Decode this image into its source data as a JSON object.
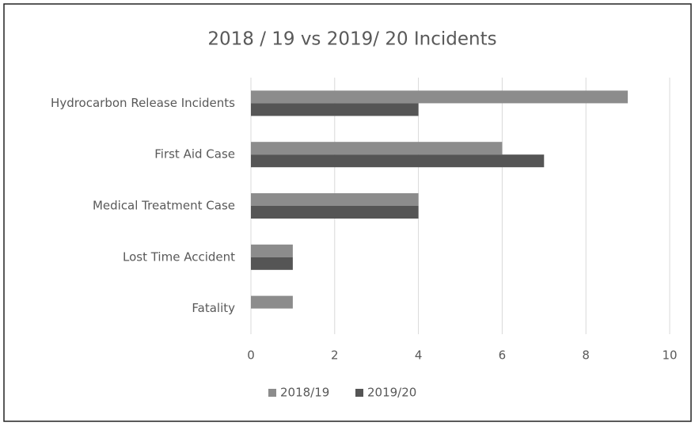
{
  "chart_data": {
    "type": "bar",
    "orientation": "horizontal",
    "title": "2018 / 19 vs 2019/ 20 Incidents",
    "categories": [
      "Hydrocarbon Release Incidents",
      "First Aid Case",
      "Medical Treatment Case",
      "Lost Time Accident",
      "Fatality"
    ],
    "series": [
      {
        "name": "2018/19",
        "color": "#8c8c8c",
        "values": [
          9,
          6,
          4,
          1,
          1
        ]
      },
      {
        "name": "2019/20",
        "color": "#555555",
        "values": [
          4,
          7,
          4,
          1,
          0
        ]
      }
    ],
    "xlim": [
      0,
      10
    ],
    "xticks": [
      0,
      2,
      4,
      6,
      8,
      10
    ],
    "grid": true,
    "legend": "bottom"
  }
}
